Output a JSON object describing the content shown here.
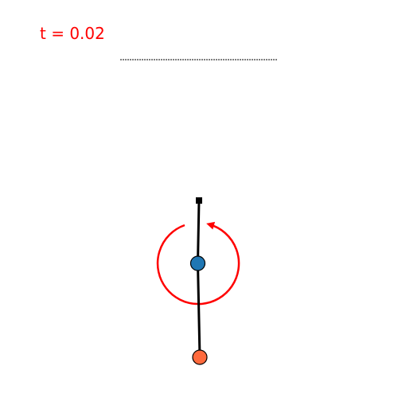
{
  "time_readout": {
    "prefix": "t = ",
    "value": "0.02",
    "text": "t = 0.02",
    "color": "#ff0000"
  },
  "scene": {
    "background": "#ffffff",
    "reference_line": {
      "style": "dashed",
      "color": "#000000"
    },
    "pivot": {
      "shape": "square",
      "color": "#000000"
    },
    "rod": {
      "color": "#000000"
    },
    "joint_mass": {
      "shape": "circle",
      "fill": "#1f77b4",
      "stroke": "#000000"
    },
    "end_mass": {
      "shape": "circle",
      "fill": "#ff6a3d",
      "stroke": "#000000"
    },
    "torque_arrow": {
      "direction": "counter-clockwise",
      "color": "#ff0000"
    }
  }
}
